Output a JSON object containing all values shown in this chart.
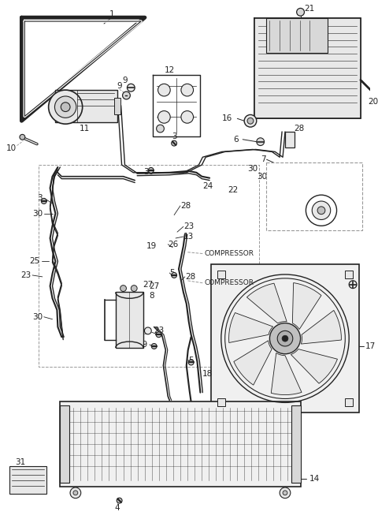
{
  "bg_color": "#ffffff",
  "line_color": "#222222",
  "label_color": "#111111",
  "dashed_color": "#999999",
  "gray1": "#d8d8d8",
  "gray2": "#e8e8e8",
  "gray3": "#c0c0c0",
  "gray4": "#b0b0b0",
  "gray5": "#f0f0f0",
  "lw_main": 1.3,
  "lw_thin": 0.7,
  "lw_dash": 0.6,
  "fs_label": 7.5
}
